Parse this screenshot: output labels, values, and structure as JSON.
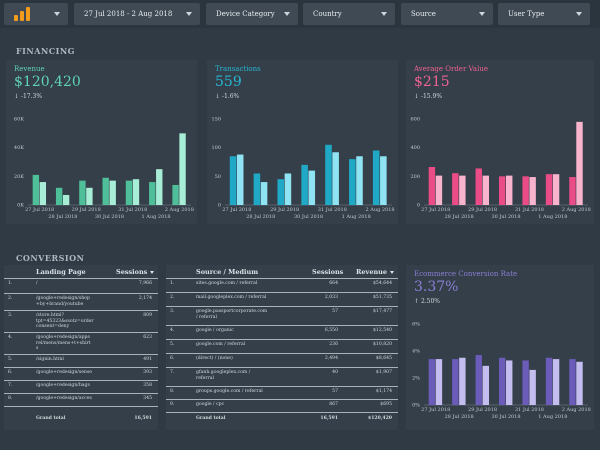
{
  "filters": {
    "date_range": "27 Jul 2018 - 2 Aug 2018",
    "device_category": "Device Category",
    "country": "Country",
    "source": "Source",
    "user_type": "User Type"
  },
  "financing": {
    "title": "FINANCING",
    "revenue": {
      "label": "Revenue",
      "value": "$120,420",
      "delta": "-17.3%"
    },
    "transactions": {
      "label": "Transactions",
      "value": "559",
      "delta": "-1.6%"
    },
    "aov": {
      "label": "Average Order Value",
      "value": "$215",
      "delta": "-15.9%"
    }
  },
  "conversion": {
    "title": "CONVERSION",
    "landing": {
      "col_page": "Landing Page",
      "col_sessions": "Sessions",
      "rows": [
        {
          "idx": "1.",
          "page": "/",
          "sessions": "7,966"
        },
        {
          "idx": "2.",
          "page": "/google+redesign/shop\n+by+brand/youtube",
          "sessions": "2,174"
        },
        {
          "idx": "3.",
          "page": "/store.html?\ntpt=45323&ssotz=order\nconsent=deny",
          "sessions": "809"
        },
        {
          "idx": "4.",
          "page": "/google+redesign/apps\nrel/mens/mens+t+shirt\ns",
          "sessions": "623"
        },
        {
          "idx": "5.",
          "page": "/signin.html",
          "sessions": "491"
        },
        {
          "idx": "6.",
          "page": "/google+redesign/sense",
          "sessions": "393"
        },
        {
          "idx": "7.",
          "page": "/google+redesign/bags",
          "sessions": "358"
        },
        {
          "idx": "8.",
          "page": "/google+redesign/acces",
          "sessions": "345"
        }
      ],
      "total_label": "Grand total",
      "total_sessions": "16,591"
    },
    "source": {
      "col_source": "Source / Medium",
      "col_sessions": "Sessions",
      "col_revenue": "Revenue",
      "rows": [
        {
          "idx": "1.",
          "source": "sites.google.com / referral",
          "sessions": "664",
          "revenue": "$54,644"
        },
        {
          "idx": "2.",
          "source": "mail.googleplex.com / referral",
          "sessions": "2,033",
          "revenue": "$51,735"
        },
        {
          "idx": "3.",
          "source": "google.passportcorporate.com\n/ referral",
          "sessions": "57",
          "revenue": "$17,477"
        },
        {
          "idx": "4.",
          "source": "google / organic",
          "sessions": "6,550",
          "revenue": "$12,540"
        },
        {
          "idx": "5.",
          "source": "google.com / referral",
          "sessions": "236",
          "revenue": "$10,820"
        },
        {
          "idx": "6.",
          "source": "(direct) / (none)",
          "sessions": "2,494",
          "revenue": "$8,645"
        },
        {
          "idx": "7.",
          "source": "gfanh.googleplex.com /\nreferral",
          "sessions": "40",
          "revenue": "$1,907"
        },
        {
          "idx": "8.",
          "source": "groups.google.com / referral",
          "sessions": "57",
          "revenue": "$1,174"
        },
        {
          "idx": "9.",
          "source": "google / cpc",
          "sessions": "867",
          "revenue": "$695"
        }
      ],
      "total_label": "Grand total",
      "total_sessions": "16,591",
      "total_revenue": "$120,420"
    },
    "ecr": {
      "label": "Ecommerce Conversion Rate",
      "value": "3.37%",
      "delta": "2.50%"
    }
  },
  "colors": {
    "revenue": "#5fd3b5",
    "transactions": "#27b6d2",
    "aov": "#f06292",
    "ecr": "#8b7fd4"
  },
  "chart_data": [
    {
      "type": "bar",
      "name": "revenue",
      "categories": [
        "27 Jul 2018",
        "28 Jul 2018",
        "29 Jul 2018",
        "30 Jul 2018",
        "31 Jul 2018",
        "1 Aug 2018",
        "2 Aug 2018"
      ],
      "series": [
        {
          "values": [
            21000,
            12000,
            17000,
            19000,
            17000,
            16000,
            14000
          ],
          "color": "#4fbf9a"
        },
        {
          "values": [
            16000,
            7000,
            12000,
            17000,
            18000,
            25000,
            50000
          ],
          "color": "#a8eed6"
        }
      ],
      "ylim": [
        0,
        60000
      ],
      "yticks": [
        "0K",
        "20K",
        "40K",
        "60K"
      ]
    },
    {
      "type": "bar",
      "name": "transactions",
      "categories": [
        "27 Jul 2018",
        "28 Jul 2018",
        "29 Jul 2018",
        "30 Jul 2018",
        "31 Jul 2018",
        "1 Aug 2018",
        "2 Aug 2018"
      ],
      "series": [
        {
          "values": [
            85,
            55,
            45,
            70,
            105,
            80,
            95
          ],
          "color": "#1fa9c6"
        },
        {
          "values": [
            88,
            40,
            55,
            60,
            92,
            85,
            85
          ],
          "color": "#8fe3f2"
        }
      ],
      "ylim": [
        0,
        150
      ],
      "yticks": [
        "0",
        "50",
        "100",
        "150"
      ]
    },
    {
      "type": "bar",
      "name": "aov",
      "categories": [
        "27 Jul 2018",
        "28 Jul 2018",
        "29 Jul 2018",
        "30 Jul 2018",
        "31 Jul 2018",
        "1 Aug 2018",
        "2 Aug 2018"
      ],
      "series": [
        {
          "values": [
            265,
            222,
            255,
            200,
            200,
            215,
            195
          ],
          "color": "#e94c86"
        },
        {
          "values": [
            205,
            205,
            205,
            205,
            195,
            215,
            580
          ],
          "color": "#f8b3cd"
        }
      ],
      "ylim": [
        0,
        600
      ],
      "yticks": [
        "0",
        "200",
        "400",
        "600"
      ]
    },
    {
      "type": "bar",
      "name": "ecr",
      "categories": [
        "27 Jul 2018",
        "28 Jul 2018",
        "29 Jul 2018",
        "30 Jul 2018",
        "31 Jul 2018",
        "1 Aug 2018",
        "2 Aug 2018"
      ],
      "series": [
        {
          "values": [
            3.4,
            3.4,
            3.7,
            3.5,
            3.3,
            3.5,
            3.4
          ],
          "color": "#6a5cb8"
        },
        {
          "values": [
            3.4,
            3.5,
            2.9,
            3.3,
            2.6,
            3.4,
            3.2
          ],
          "color": "#c4bdf0"
        }
      ],
      "ylim": [
        0,
        6
      ],
      "yticks": [
        "0%",
        "2%",
        "4%",
        "6%"
      ]
    }
  ]
}
